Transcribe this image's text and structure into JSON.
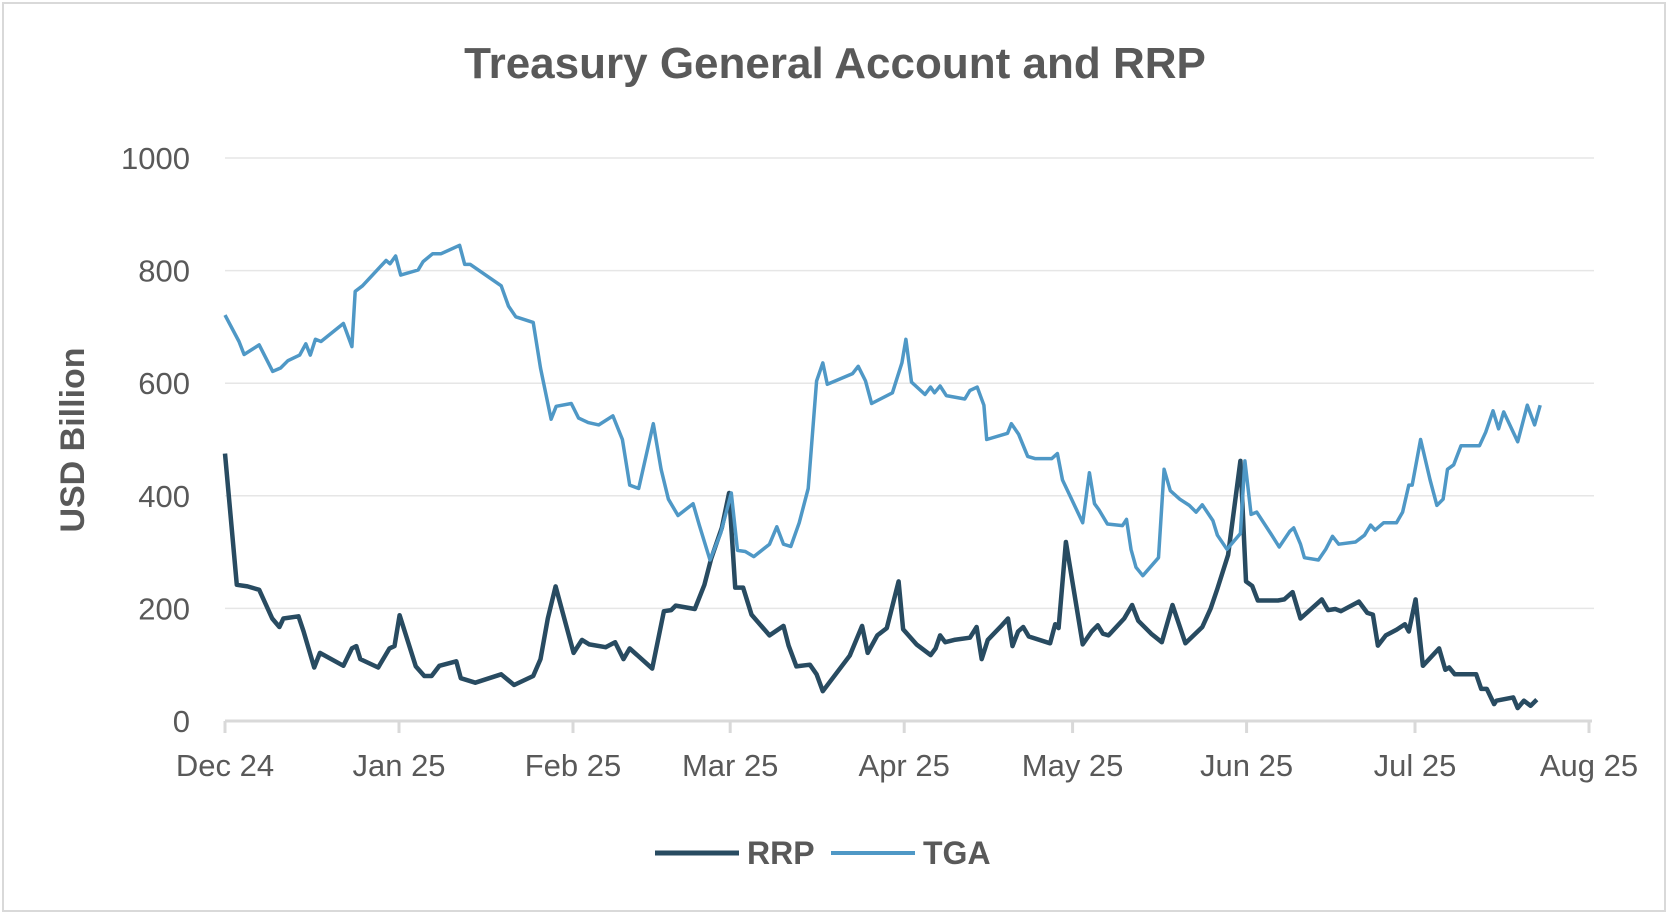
{
  "chart_data": {
    "type": "line",
    "title": "Treasury General Account and RRP",
    "xlabel": "",
    "ylabel": "USD Billion",
    "x_unit": "days since 2024-12-01",
    "xlim": [
      0,
      243
    ],
    "ylim": [
      0,
      1000
    ],
    "yticks": [
      0,
      200,
      400,
      600,
      800,
      1000
    ],
    "xticks": [
      {
        "day": 0,
        "label": "Dec 24"
      },
      {
        "day": 31,
        "label": "Jan 25"
      },
      {
        "day": 62,
        "label": "Feb 25"
      },
      {
        "day": 90,
        "label": "Mar 25"
      },
      {
        "day": 121,
        "label": "Apr 25"
      },
      {
        "day": 151,
        "label": "May 25"
      },
      {
        "day": 182,
        "label": "Jun 25"
      },
      {
        "day": 212,
        "label": "Jul 25"
      },
      {
        "day": 243,
        "label": "Aug 25"
      }
    ],
    "grid": true,
    "legend_position": "bottom",
    "series": [
      {
        "name": "RRP",
        "color": "#284b61",
        "points": [
          [
            0,
            475
          ],
          [
            2.1,
            242
          ],
          [
            4,
            239
          ],
          [
            6.1,
            233
          ],
          [
            8.4,
            182
          ],
          [
            9.7,
            167
          ],
          [
            10.4,
            182
          ],
          [
            13.1,
            186
          ],
          [
            14,
            159
          ],
          [
            15.9,
            95
          ],
          [
            16.9,
            121
          ],
          [
            21.1,
            98
          ],
          [
            22.6,
            129
          ],
          [
            23.4,
            133
          ],
          [
            24.1,
            110
          ],
          [
            27.3,
            95
          ],
          [
            29.3,
            129
          ],
          [
            30.2,
            133
          ],
          [
            31.1,
            188
          ],
          [
            34,
            97
          ],
          [
            35.5,
            80
          ],
          [
            36.8,
            80
          ],
          [
            38.2,
            98
          ],
          [
            41.2,
            106
          ],
          [
            42,
            76
          ],
          [
            44.6,
            68
          ],
          [
            49.2,
            83
          ],
          [
            51.5,
            64
          ],
          [
            54.9,
            80
          ],
          [
            56.2,
            110
          ],
          [
            57.5,
            182
          ],
          [
            58.9,
            239
          ],
          [
            62.1,
            121
          ],
          [
            63.6,
            144
          ],
          [
            64.9,
            136
          ],
          [
            67.8,
            131
          ],
          [
            69.5,
            140
          ],
          [
            71,
            110
          ],
          [
            72.1,
            129
          ],
          [
            76.1,
            93
          ],
          [
            78.2,
            195
          ],
          [
            79.5,
            197
          ],
          [
            80.3,
            205
          ],
          [
            83.7,
            199
          ],
          [
            85.4,
            242
          ],
          [
            86.6,
            288
          ],
          [
            88.5,
            343
          ],
          [
            89.8,
            405
          ],
          [
            90.9,
            237
          ],
          [
            92.3,
            237
          ],
          [
            93.8,
            189
          ],
          [
            97,
            152
          ],
          [
            99.5,
            169
          ],
          [
            100.4,
            134
          ],
          [
            101.8,
            97
          ],
          [
            104.2,
            100
          ],
          [
            105.4,
            83
          ],
          [
            106.5,
            53
          ],
          [
            111.3,
            116
          ],
          [
            113.5,
            169
          ],
          [
            114.5,
            121
          ],
          [
            116.2,
            152
          ],
          [
            117.9,
            165
          ],
          [
            120,
            248
          ],
          [
            120.8,
            163
          ],
          [
            123.2,
            136
          ],
          [
            125.7,
            117
          ],
          [
            126.6,
            129
          ],
          [
            127.4,
            152
          ],
          [
            128.3,
            140
          ],
          [
            129.9,
            144
          ],
          [
            132.7,
            148
          ],
          [
            133.9,
            167
          ],
          [
            134.8,
            110
          ],
          [
            135.9,
            144
          ],
          [
            138.4,
            170
          ],
          [
            139.5,
            182
          ],
          [
            140.3,
            133
          ],
          [
            141.3,
            159
          ],
          [
            142.2,
            167
          ],
          [
            143.2,
            150
          ],
          [
            147,
            138
          ],
          [
            147.9,
            172
          ],
          [
            148.5,
            165
          ],
          [
            149.8,
            318
          ],
          [
            152.8,
            136
          ],
          [
            154.4,
            159
          ],
          [
            155.5,
            170
          ],
          [
            156.4,
            155
          ],
          [
            157.4,
            152
          ],
          [
            160.2,
            182
          ],
          [
            161.6,
            206
          ],
          [
            162.7,
            178
          ],
          [
            165,
            155
          ],
          [
            166.9,
            140
          ],
          [
            168.8,
            206
          ],
          [
            171.1,
            138
          ],
          [
            174.1,
            167
          ],
          [
            175.6,
            200
          ],
          [
            176.8,
            235
          ],
          [
            178.7,
            295
          ],
          [
            180.9,
            462
          ],
          [
            181.9,
            248
          ],
          [
            183,
            240
          ],
          [
            184,
            214
          ],
          [
            187.6,
            214
          ],
          [
            188.7,
            216
          ],
          [
            190.2,
            229
          ],
          [
            191.6,
            182
          ],
          [
            195.4,
            216
          ],
          [
            196.5,
            197
          ],
          [
            197.8,
            199
          ],
          [
            198.8,
            195
          ],
          [
            202,
            212
          ],
          [
            203.5,
            192
          ],
          [
            204.5,
            189
          ],
          [
            205.4,
            134
          ],
          [
            206.8,
            152
          ],
          [
            208.7,
            162
          ],
          [
            210.2,
            172
          ],
          [
            210.9,
            159
          ],
          [
            212.1,
            216
          ],
          [
            213.4,
            98
          ],
          [
            216.3,
            129
          ],
          [
            217.4,
            91
          ],
          [
            218.1,
            95
          ],
          [
            219.1,
            83
          ],
          [
            222.9,
            83
          ],
          [
            223.8,
            57
          ],
          [
            224.8,
            57
          ],
          [
            226.1,
            30
          ],
          [
            226.5,
            36
          ],
          [
            229.5,
            42
          ],
          [
            230.3,
            23
          ],
          [
            231.4,
            36
          ],
          [
            232.6,
            27
          ],
          [
            233.7,
            38
          ]
        ]
      },
      {
        "name": "TGA",
        "color": "#4f98c6",
        "points": [
          [
            0,
            721
          ],
          [
            2.5,
            674
          ],
          [
            3.4,
            651
          ],
          [
            6.1,
            668
          ],
          [
            8.5,
            621
          ],
          [
            9.9,
            627
          ],
          [
            11.2,
            640
          ],
          [
            13.3,
            650
          ],
          [
            14.4,
            670
          ],
          [
            15.2,
            650
          ],
          [
            16.1,
            678
          ],
          [
            17.1,
            674
          ],
          [
            21.1,
            706
          ],
          [
            22.6,
            665
          ],
          [
            23.2,
            763
          ],
          [
            24.5,
            773
          ],
          [
            27.3,
            803
          ],
          [
            28.7,
            818
          ],
          [
            29.4,
            812
          ],
          [
            30.4,
            826
          ],
          [
            31.3,
            792
          ],
          [
            34.4,
            801
          ],
          [
            35.3,
            816
          ],
          [
            37,
            830
          ],
          [
            38.5,
            830
          ],
          [
            41.8,
            845
          ],
          [
            42.7,
            811
          ],
          [
            43.7,
            811
          ],
          [
            49.2,
            773
          ],
          [
            50.5,
            737
          ],
          [
            51.8,
            718
          ],
          [
            54.9,
            708
          ],
          [
            56.2,
            627
          ],
          [
            58.1,
            536
          ],
          [
            59,
            559
          ],
          [
            61.7,
            564
          ],
          [
            63,
            538
          ],
          [
            64.7,
            530
          ],
          [
            66.6,
            526
          ],
          [
            69.1,
            542
          ],
          [
            70.8,
            500
          ],
          [
            72.1,
            419
          ],
          [
            73.7,
            413
          ],
          [
            76.3,
            528
          ],
          [
            77.7,
            447
          ],
          [
            79,
            394
          ],
          [
            80.7,
            365
          ],
          [
            83.4,
            386
          ],
          [
            84.5,
            348
          ],
          [
            86.4,
            286
          ],
          [
            88.3,
            333
          ],
          [
            90.2,
            405
          ],
          [
            91.3,
            303
          ],
          [
            92.7,
            301
          ],
          [
            94.2,
            292
          ],
          [
            97,
            314
          ],
          [
            98.3,
            345
          ],
          [
            99.5,
            314
          ],
          [
            100.8,
            310
          ],
          [
            102.3,
            352
          ],
          [
            103.9,
            413
          ],
          [
            105.4,
            604
          ],
          [
            106.5,
            636
          ],
          [
            107.3,
            598
          ],
          [
            111.8,
            617
          ],
          [
            112.8,
            630
          ],
          [
            114.1,
            604
          ],
          [
            115.2,
            564
          ],
          [
            118.9,
            583
          ],
          [
            120.6,
            636
          ],
          [
            121.3,
            678
          ],
          [
            122.3,
            602
          ],
          [
            124.7,
            580
          ],
          [
            125.7,
            593
          ],
          [
            126.4,
            583
          ],
          [
            127.4,
            595
          ],
          [
            128.5,
            578
          ],
          [
            131.8,
            572
          ],
          [
            132.7,
            587
          ],
          [
            134,
            593
          ],
          [
            135.2,
            561
          ],
          [
            135.7,
            500
          ],
          [
            139.4,
            511
          ],
          [
            140.1,
            528
          ],
          [
            141.4,
            509
          ],
          [
            143,
            470
          ],
          [
            144.3,
            466
          ],
          [
            147.3,
            466
          ],
          [
            148.3,
            475
          ],
          [
            149.2,
            428
          ],
          [
            150.4,
            403
          ],
          [
            152.8,
            352
          ],
          [
            154,
            441
          ],
          [
            154.9,
            386
          ],
          [
            155.7,
            375
          ],
          [
            157.2,
            350
          ],
          [
            159.9,
            347
          ],
          [
            160.6,
            358
          ],
          [
            161.4,
            305
          ],
          [
            162.3,
            273
          ],
          [
            163.5,
            258
          ],
          [
            166.3,
            290
          ],
          [
            167.3,
            447
          ],
          [
            168.4,
            409
          ],
          [
            170.1,
            394
          ],
          [
            171.8,
            383
          ],
          [
            173,
            371
          ],
          [
            174.1,
            384
          ],
          [
            176,
            356
          ],
          [
            176.8,
            330
          ],
          [
            178.5,
            305
          ],
          [
            180.9,
            333
          ],
          [
            181.7,
            462
          ],
          [
            182.8,
            367
          ],
          [
            183.8,
            371
          ],
          [
            186.3,
            333
          ],
          [
            187.8,
            309
          ],
          [
            189.7,
            337
          ],
          [
            190.4,
            343
          ],
          [
            191.6,
            314
          ],
          [
            192.3,
            290
          ],
          [
            194.8,
            286
          ],
          [
            196.1,
            305
          ],
          [
            197.3,
            328
          ],
          [
            198.4,
            314
          ],
          [
            201.4,
            318
          ],
          [
            203,
            330
          ],
          [
            204.1,
            348
          ],
          [
            204.9,
            339
          ],
          [
            206.4,
            352
          ],
          [
            208.7,
            352
          ],
          [
            209.8,
            371
          ],
          [
            210.9,
            419
          ],
          [
            211.5,
            419
          ],
          [
            213,
            500
          ],
          [
            214.7,
            428
          ],
          [
            215.9,
            383
          ],
          [
            217,
            394
          ],
          [
            217.8,
            447
          ],
          [
            218.9,
            455
          ],
          [
            220.2,
            489
          ],
          [
            223.5,
            489
          ],
          [
            224.6,
            513
          ],
          [
            225.9,
            551
          ],
          [
            226.9,
            519
          ],
          [
            227.8,
            549
          ],
          [
            230.3,
            496
          ],
          [
            232,
            561
          ],
          [
            233.3,
            526
          ],
          [
            234.3,
            561
          ]
        ]
      }
    ]
  }
}
